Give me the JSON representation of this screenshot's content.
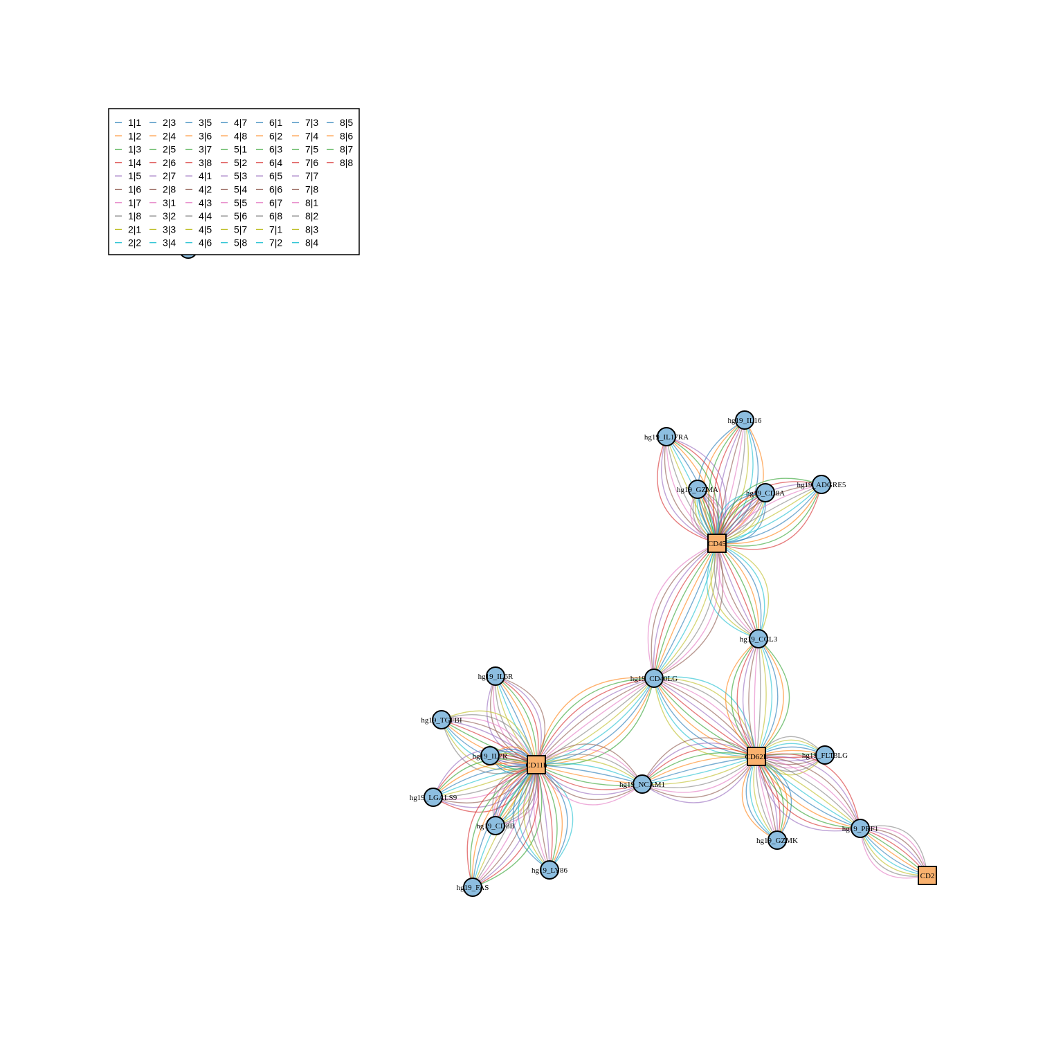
{
  "colors": {
    "gene_fill": "#8DBEE0",
    "protein_fill": "#F9B16E",
    "palette": [
      "#1f77b4",
      "#ff7f0e",
      "#2ca02c",
      "#d62728",
      "#9467bd",
      "#8c564b",
      "#e377c2",
      "#7f7f7f",
      "#bcbd22",
      "#17becf"
    ]
  },
  "legend": {
    "entries": [
      "1|1",
      "1|2",
      "1|3",
      "1|4",
      "1|5",
      "1|6",
      "1|7",
      "1|8",
      "2|1",
      "2|2",
      "2|3",
      "2|4",
      "2|5",
      "2|6",
      "2|7",
      "2|8",
      "3|1",
      "3|2",
      "3|3",
      "3|4",
      "3|5",
      "3|6",
      "3|7",
      "3|8",
      "4|1",
      "4|2",
      "4|3",
      "4|4",
      "4|5",
      "4|6",
      "4|7",
      "4|8",
      "5|1",
      "5|2",
      "5|3",
      "5|4",
      "5|5",
      "5|6",
      "5|7",
      "5|8",
      "6|1",
      "6|2",
      "6|3",
      "6|4",
      "6|5",
      "6|6",
      "6|7",
      "6|8",
      "7|1",
      "7|2",
      "7|3",
      "7|4",
      "7|5",
      "7|6",
      "7|7",
      "7|8",
      "8|1",
      "8|2",
      "8|3",
      "8|4",
      "8|5",
      "8|6",
      "8|7",
      "8|8"
    ]
  },
  "nodes": [
    {
      "id": "CD45",
      "label": "CD45",
      "kind": "protein"
    },
    {
      "id": "CD11b",
      "label": "CD11b",
      "kind": "protein"
    },
    {
      "id": "CD62L",
      "label": "CD62L",
      "kind": "protein"
    },
    {
      "id": "CD2",
      "label": "CD2",
      "kind": "protein"
    },
    {
      "id": "IL16",
      "label": "hg19_IL16",
      "kind": "gene"
    },
    {
      "id": "IL17RA",
      "label": "hg19_IL17RA",
      "kind": "gene"
    },
    {
      "id": "GZMA",
      "label": "hg19_GZMA",
      "kind": "gene"
    },
    {
      "id": "CD8A",
      "label": "hg19_CD8A",
      "kind": "gene"
    },
    {
      "id": "ADGRE5",
      "label": "hg19_ADGRE5",
      "kind": "gene"
    },
    {
      "id": "CCL3",
      "label": "hg19_CCL3",
      "kind": "gene"
    },
    {
      "id": "CD40LG",
      "label": "hg19_CD40LG",
      "kind": "gene"
    },
    {
      "id": "IL6R",
      "label": "hg19_IL6R",
      "kind": "gene"
    },
    {
      "id": "TGFBI",
      "label": "hg19_TGFBI",
      "kind": "gene"
    },
    {
      "id": "IL7R",
      "label": "hg19_IL7R",
      "kind": "gene"
    },
    {
      "id": "LGALS9",
      "label": "hg19_LGALS9",
      "kind": "gene"
    },
    {
      "id": "CD8B",
      "label": "hg19_CD8B",
      "kind": "gene"
    },
    {
      "id": "LY86",
      "label": "hg19_LY86",
      "kind": "gene"
    },
    {
      "id": "FAS",
      "label": "hg19_FAS",
      "kind": "gene"
    },
    {
      "id": "NCAM1",
      "label": "hg19_NCAM1",
      "kind": "gene"
    },
    {
      "id": "FLT3LG",
      "label": "hg19_FLT3LG",
      "kind": "gene"
    },
    {
      "id": "GZMK",
      "label": "hg19_GZMK",
      "kind": "gene"
    },
    {
      "id": "PRF1",
      "label": "hg19_PRF1",
      "kind": "gene"
    }
  ],
  "edges": [
    [
      "CD45",
      "IL16"
    ],
    [
      "CD45",
      "IL17RA"
    ],
    [
      "CD45",
      "GZMA"
    ],
    [
      "CD45",
      "CD8A"
    ],
    [
      "CD45",
      "ADGRE5"
    ],
    [
      "CD45",
      "CD40LG"
    ],
    [
      "CD45",
      "CCL3"
    ],
    [
      "CD11b",
      "CD40LG"
    ],
    [
      "CD11b",
      "IL6R"
    ],
    [
      "CD11b",
      "TGFBI"
    ],
    [
      "CD11b",
      "IL7R"
    ],
    [
      "CD11b",
      "LGALS9"
    ],
    [
      "CD11b",
      "CD8B"
    ],
    [
      "CD11b",
      "LY86"
    ],
    [
      "CD11b",
      "FAS"
    ],
    [
      "CD11b",
      "NCAM1"
    ],
    [
      "CD62L",
      "CD40LG"
    ],
    [
      "CD62L",
      "CCL3"
    ],
    [
      "CD62L",
      "NCAM1"
    ],
    [
      "CD62L",
      "FLT3LG"
    ],
    [
      "CD62L",
      "GZMK"
    ],
    [
      "CD62L",
      "PRF1"
    ],
    [
      "CD2",
      "PRF1"
    ]
  ]
}
